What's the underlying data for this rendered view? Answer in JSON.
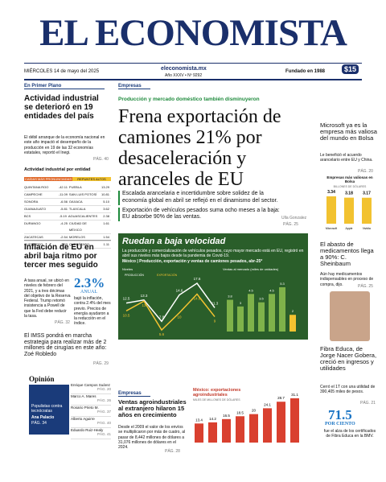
{
  "masthead": {
    "title": "EL ECONOMISTA",
    "date": "MIÉRCOLES 14 de mayo del 2025",
    "site": "eleconomista.mx",
    "issue": "Año XXXV • Nº 9292",
    "founded": "Fundado en 1988",
    "price": "$15"
  },
  "left": {
    "section": "En Primer Plano",
    "headline": "Actividad industrial se deterioró en 19 entidades del país",
    "bullet": "El débil arranque de la economía nacional en este año impactó el desempeño de la producción en 19 de las 32 economías estatales, reportó el Inegi.",
    "page": "PÁG. 40",
    "table_title": "Actividad industrial por entidad",
    "table_head_a": "CAÍDAS MÁS PRONUNCIADAS",
    "table_head_b": "REPUNTES ALTOS",
    "rows": [
      [
        "QUINTANA ROO",
        "-42.11",
        "PUEBLA",
        "13.29"
      ],
      [
        "CAMPECHE",
        "-11.09",
        "SAN LUIS POTOSÍ",
        "10.81"
      ],
      [
        "SONORA",
        "-6.56",
        "OAXACA",
        "5.10"
      ],
      [
        "GUANAJUATO",
        "-5.81",
        "TLAXCALA",
        "3.62"
      ],
      [
        "BCS",
        "-5.19",
        "AGUASCALIENTES",
        "2.38"
      ],
      [
        "DURANGO",
        "-4.25",
        "CIUDAD DE MÉXICO",
        "1.61"
      ],
      [
        "ZACATECAS",
        "-2.54",
        "MORELOS",
        "1.54"
      ],
      [
        "GUERRERO",
        "-2.53",
        "QUERÉTARO",
        "1.11"
      ]
    ],
    "infl_headline": "Inflación de EU en abril baja ritmo por tercer mes seguido",
    "infl_bullet": "A tasa anual, se ubicó en niveles de febrero del 2021, y a tres décimas del objetivo de la Reserva Federal. Trump retomó insistencia a Powell de que la Fed debe reducir la tasa.",
    "infl_figure": "2.3%",
    "infl_unit": "ANUAL",
    "infl_note": "bajó la inflación, contra 2.4% del mes previo. Precios de energía ayudaron a la reducción en el índice.",
    "infl_page": "PÁG. 32",
    "imss": "El IMSS pondrá en marcha estrategia para realizar más de 2 millones de cirugías en este año: Zoé Robledo",
    "imss_page": "PÁG. 29",
    "opinion": "Opinión",
    "columnists": [
      [
        "Enrique Campos Suárez",
        "PÁG. 20"
      ],
      [
        "Marco A. Mares",
        "PÁG. 26"
      ],
      [
        "Rosario Prieto M.",
        "PÁG. 37"
      ],
      [
        "Alberto Aguirre",
        "PÁG. 40"
      ],
      [
        "Eduardo Ruiz-Healy",
        "PÁG. 41"
      ]
    ],
    "promo_title": "Populistas contra tecnócratas",
    "promo_author": "Ana Palacio",
    "promo_page": "PÁG. 34"
  },
  "main": {
    "section": "Empresas",
    "kicker": "Producción y mercado doméstico también disminuyeron",
    "headline": "Frena exportación de camiones 21% por desaceleración y aranceles de EU",
    "bullets": [
      "Escalada arancelaria e incertidumbre sobre solidez de la economía global en abril se reflejó en el dinamismo del sector.",
      "Exportación de vehículos pesados suma ocho meses a la baja: EU absorbe 90% de las ventas."
    ],
    "author": "Ulla Gonzalez",
    "page": "PÁG. 25",
    "box_title": "Ruedan a baja velocidad",
    "box_text": "La producción y comercialización de vehículos pesados, cuyo mayor mercado está en EU, registró en abril sus niveles más bajos desde la pandemia de Covid-19.",
    "box_subtitle": "México | Producción, exportación y ventas de camiones pesados, abr-25*",
    "line_title": "Niveles",
    "line_series": [
      {
        "name": "PRODUCCIÓN",
        "color": "#ffffff",
        "values": [
          12.5,
          13.3,
          7.8,
          14.6,
          17.6,
          11.3
        ]
      },
      {
        "name": "EXPORTACIÓN",
        "color": "#f2c230",
        "values": [
          10.5,
          13.0,
          5.6,
          10.0,
          14.8,
          9.0
        ]
      }
    ],
    "bar_title": "Ventas al mercado (miles de unidades)",
    "bar_values": [
      3.8,
      3.0,
      4.5,
      3.5,
      4.5,
      5.3,
      2.0
    ],
    "agro_section": "Empresas",
    "agro_headline": "Ventas agroindustriales al extranjero hilaron 15 años en crecimiento",
    "agro_bullet": "Desde el 2009 el valor de los envíos se multiplicaron por más de cuatro, al pasar de 8,442 millones de dólares a 31,076 millones de dólares en el 2024.",
    "agro_page": "PÁG. 28",
    "agro_chart_title": "México: exportaciones agroindustriales",
    "agro_chart_unit": "MILES DE MILLONES DE DÓLARES",
    "agro_values": [
      13.4,
      14.2,
      16.5,
      18.5,
      20.0,
      24.1,
      28.7,
      31.1
    ]
  },
  "right": {
    "ms_headline": "Microsoft ya es la empresa más valiosa del mundo en Bolsa",
    "ms_bullet": "Le benefició el acuerdo arancelario entre EU y China.",
    "ms_page": "PÁG. 20",
    "chart_title": "Empresas más valiosas en Bolsa",
    "chart_unit": "BILLONES DE DÓLARES",
    "companies": [
      "Microsoft",
      "Apple",
      "Nvidia"
    ],
    "values": [
      3.34,
      3.18,
      3.17
    ],
    "med_headline": "El abasto de medicamentos llega a 90%: C. Sheinbaum",
    "med_bullet": "Aún hay medicamentos indispensables en proceso de compra, dijo.",
    "med_page": "PÁG. 25",
    "fibra_headline": "Fibra Educa, de Jorge Nacer Gobera, creció en ingresos y utilidades",
    "fibra_bullet": "Cerró el 1T con una utilidad de 390,405 miles de pesos.",
    "fibra_page": "PÁG. 21",
    "fibra_figure": "71.5",
    "fibra_unit": "POR CIENTO",
    "fibra_note": "fue el alza de los certificados de Fibra Educa en la BMV."
  }
}
